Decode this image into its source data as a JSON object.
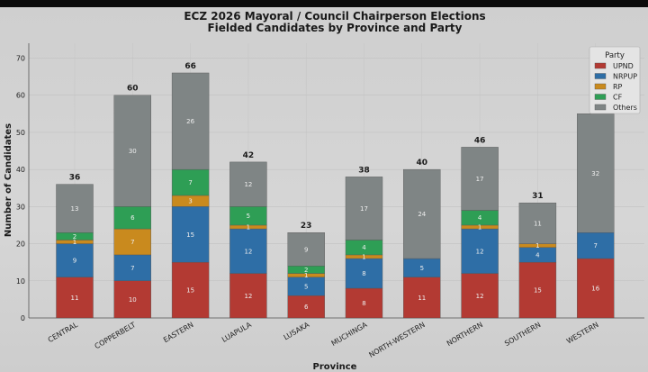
{
  "chart_data": {
    "type": "bar",
    "stacked": true,
    "title": "ECZ 2026 Mayoral / Council Chairperson Elections",
    "subtitle": "Fielded Candidates by Province and Party",
    "xlabel": "Province",
    "ylabel": "Number of Candidates",
    "ylim": [
      0,
      74
    ],
    "yticks": [
      0,
      10,
      20,
      30,
      40,
      50,
      60,
      70
    ],
    "grid": true,
    "legend_title": "Party",
    "legend_position": "top-right",
    "categories": [
      "CENTRAL",
      "COPPERBELT",
      "EASTERN",
      "LUAPULA",
      "LUSAKA",
      "MUCHINGA",
      "NORTH-WESTERN",
      "NORTHERN",
      "SOUTHERN",
      "WESTERN"
    ],
    "series": [
      {
        "name": "UPND",
        "color": "#b33a33",
        "values": [
          11,
          10,
          15,
          12,
          6,
          8,
          11,
          12,
          15,
          16
        ]
      },
      {
        "name": "NRPUP",
        "color": "#2e6ea6",
        "values": [
          9,
          7,
          15,
          12,
          5,
          8,
          5,
          12,
          4,
          7
        ]
      },
      {
        "name": "RP",
        "color": "#c98a1e",
        "values": [
          1,
          7,
          3,
          1,
          1,
          1,
          0,
          1,
          1,
          0
        ]
      },
      {
        "name": "CF",
        "color": "#2e9e55",
        "values": [
          2,
          6,
          7,
          5,
          2,
          4,
          0,
          4,
          0,
          0
        ]
      },
      {
        "name": "Others",
        "color": "#7f8585",
        "values": [
          13,
          30,
          26,
          12,
          9,
          17,
          24,
          17,
          11,
          32
        ]
      }
    ],
    "totals": [
      36,
      60,
      66,
      42,
      23,
      38,
      40,
      46,
      31,
      55
    ],
    "total_labels": [
      "36",
      "60",
      "66",
      "42",
      "23",
      "38",
      "40",
      "46",
      "31",
      ""
    ]
  }
}
